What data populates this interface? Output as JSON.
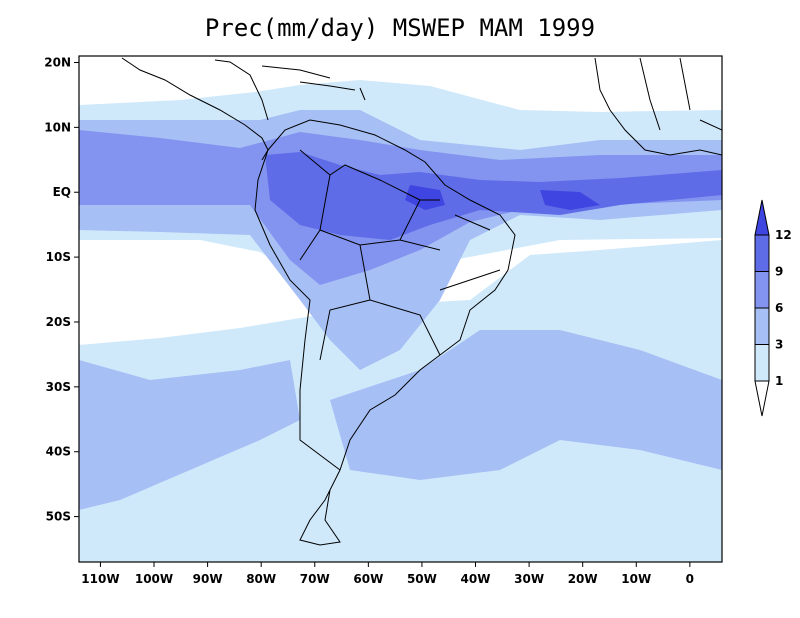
{
  "title": "Prec(mm/day) MSWEP MAM 1999",
  "map": {
    "x_ticks": [
      {
        "lon": -110,
        "label": "110W"
      },
      {
        "lon": -100,
        "label": "100W"
      },
      {
        "lon": -90,
        "label": "90W"
      },
      {
        "lon": -80,
        "label": "80W"
      },
      {
        "lon": -70,
        "label": "70W"
      },
      {
        "lon": -60,
        "label": "60W"
      },
      {
        "lon": -50,
        "label": "50W"
      },
      {
        "lon": -40,
        "label": "40W"
      },
      {
        "lon": -30,
        "label": "30W"
      },
      {
        "lon": -20,
        "label": "20W"
      },
      {
        "lon": -10,
        "label": "10W"
      },
      {
        "lon": 0,
        "label": "0"
      }
    ],
    "y_ticks": [
      {
        "lat": 20,
        "label": "20N"
      },
      {
        "lat": 10,
        "label": "10N"
      },
      {
        "lat": 0,
        "label": "EQ"
      },
      {
        "lat": -10,
        "label": "10S"
      },
      {
        "lat": -20,
        "label": "20S"
      },
      {
        "lat": -30,
        "label": "30S"
      },
      {
        "lat": -40,
        "label": "40S"
      },
      {
        "lat": -50,
        "label": "50S"
      }
    ],
    "lon_range": [
      -114,
      6
    ],
    "lat_range": [
      -57,
      21
    ]
  },
  "colorbar": {
    "levels": [
      "1",
      "3",
      "6",
      "9",
      "12"
    ],
    "colors": [
      "#ffffff",
      "#cfe9fb",
      "#a6bff5",
      "#8294ef",
      "#5f6ce8",
      "#3f45e0"
    ]
  },
  "colors": {
    "background": "#ffffff",
    "light": "#cfe9fb",
    "mid": "#a6bff5",
    "strong": "#8294ef",
    "heavy": "#5f6ce8",
    "extreme": "#3f45e0"
  }
}
